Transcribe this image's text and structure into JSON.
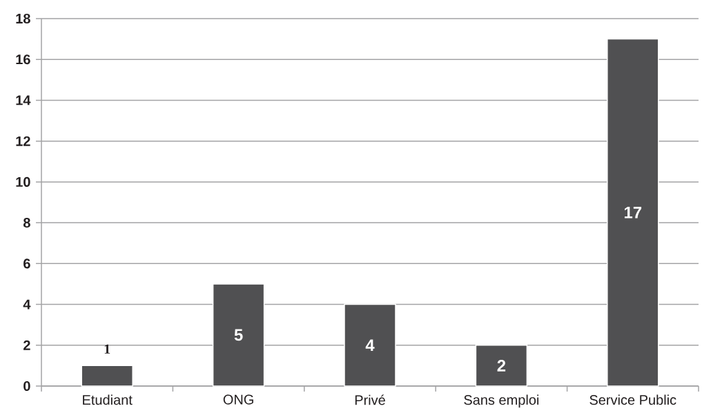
{
  "chart_data": {
    "type": "bar",
    "categories": [
      "Etudiant",
      "ONG",
      "Privé",
      "Sans emploi",
      "Service Public"
    ],
    "values": [
      1,
      5,
      4,
      2,
      17
    ],
    "color": "#505052",
    "ylim": [
      0,
      18
    ],
    "yticks": [
      0,
      2,
      4,
      6,
      8,
      10,
      12,
      14,
      16,
      18
    ],
    "grid": "y",
    "data_labels": true
  }
}
